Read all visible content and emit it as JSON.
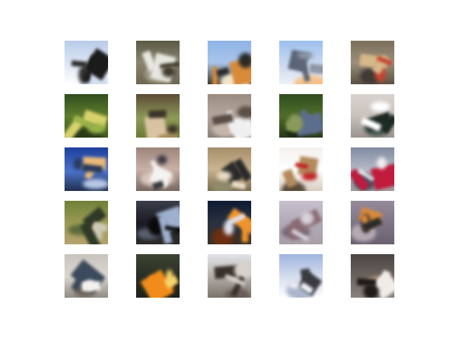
{
  "grid": {
    "rows": 5,
    "cols": 5
  },
  "tiles": [
    {
      "bg": "linear-gradient(180deg,#b9cbe9 0%,#dfe7f4 55%,#ffffff 100%)",
      "a": "#1b1b1b",
      "b": "#2d2d2d",
      "c": "#d4dff0"
    },
    {
      "bg": "linear-gradient(180deg,#5a5a44 0%,#8a8470 50%,#6c6650 100%)",
      "a": "#e8e6e0",
      "b": "#3d3a2c",
      "c": "#a39e8a"
    },
    {
      "bg": "linear-gradient(180deg,#8fb4e8 0%,#a9c4ea 50%,#3c3a30 100%)",
      "a": "#d98b3a",
      "b": "#2a2a28",
      "c": "#f2e6c8"
    },
    {
      "bg": "linear-gradient(180deg,#9cc0ee 0%,#cfdcef 60%,#eef2f7 100%)",
      "a": "#5c6577",
      "b": "#8d97a8",
      "c": "#f4c28a"
    },
    {
      "bg": "linear-gradient(180deg,#7b6f5d 0%,#9b8f7a 50%,#5a5144 100%)",
      "a": "#d6b88a",
      "b": "#c54632",
      "c": "#3e3a34"
    },
    {
      "bg": "linear-gradient(180deg,#2f4d1e 0%,#5f7d2a 50%,#3d5a1c 100%)",
      "a": "#d8d26c",
      "b": "#9bb34a",
      "c": "#2a3a18"
    },
    {
      "bg": "linear-gradient(180deg,#5a4a36 0%,#8f9a58 55%,#6a7a32 100%)",
      "a": "#d9c4a2",
      "b": "#3b3428",
      "c": "#a7905e"
    },
    {
      "bg": "linear-gradient(180deg,#9a8b80 0%,#b4a89e 50%,#8a7f78 100%)",
      "a": "#f0f0f0",
      "b": "#5b4e46",
      "c": "#c7b7aa"
    },
    {
      "bg": "linear-gradient(180deg,#2f4d1e 0%,#4e6e2a 50%,#2a3a1a 100%)",
      "a": "#5b6e8e",
      "b": "#8a9a5a",
      "c": "#1a2410"
    },
    {
      "bg": "linear-gradient(180deg,#d9d3cf 0%,#c9c1bb 50%,#9b948f 100%)",
      "a": "#1e2a24",
      "b": "#ffffff",
      "c": "#41554a"
    },
    {
      "bg": "linear-gradient(180deg,#1d3f9c 0%,#4b72c8 55%,#20304e 100%)",
      "a": "#e9b978",
      "b": "#2b3a5a",
      "c": "#b8c8e8"
    },
    {
      "bg": "linear-gradient(180deg,#9c8479 0%,#c8b0a8 50%,#77675f 100%)",
      "a": "#f4f2f0",
      "b": "#3b3a40",
      "c": "#d7c4bd"
    },
    {
      "bg": "linear-gradient(180deg,#a58f6a 0%,#c9b490 50%,#7a6b50 100%)",
      "a": "#2a2a2a",
      "b": "#e9dcc4",
      "c": "#8e8a6a"
    },
    {
      "bg": "linear-gradient(180deg,#f4f0ec 0%,#ffffff 50%,#d8cec2 100%)",
      "a": "#b48a5c",
      "b": "#c21f1f",
      "c": "#5a4a3a"
    },
    {
      "bg": "linear-gradient(180deg,#7f8aa0 0%,#b4b9c7 50%,#9f9a98 100%)",
      "a": "#c01a3c",
      "b": "#f0eef0",
      "c": "#4a4c60"
    },
    {
      "bg": "linear-gradient(180deg,#6f8038 0%,#9a9a52 50%,#b4a26e 100%)",
      "a": "#2f3a26",
      "b": "#cfc9b6",
      "c": "#5b6a3a"
    },
    {
      "bg": "linear-gradient(180deg,#3b3d4a 0%,#1b1c24 50%,#2e2a2a 100%)",
      "a": "#9db0ce",
      "b": "#0a0a0a",
      "c": "#5a6070"
    },
    {
      "bg": "linear-gradient(180deg,#0d1a33 0%,#2a3240 50%,#3a3024 100%)",
      "a": "#f0922a",
      "b": "#e0e0ee",
      "c": "#6b2f12"
    },
    {
      "bg": "linear-gradient(180deg,#c6c0cc 0%,#b3aab8 50%,#a79ea7 100%)",
      "a": "#8a6a72",
      "b": "#d8d2dc",
      "c": "#776874"
    },
    {
      "bg": "linear-gradient(180deg,#948b99 0%,#7f7587 50%,#6a616f 100%)",
      "a": "#d88a3a",
      "b": "#2a2a2a",
      "c": "#b7aab4"
    },
    {
      "bg": "linear-gradient(180deg,#c8c4bd 0%,#dcd7cf 50%,#8f8b83 100%)",
      "a": "#3b4a5c",
      "b": "#f4f2ee",
      "c": "#6a6258"
    },
    {
      "bg": "linear-gradient(180deg,#3c4532 0%,#2a2e24 50%,#1e221a 100%)",
      "a": "#f08c1a",
      "b": "#f7d36a",
      "c": "#c94a12"
    },
    {
      "bg": "linear-gradient(180deg,#e2e4ea 0%,#b6b0aa 50%,#7b726c 100%)",
      "a": "#3a302c",
      "b": "#d8d2cc",
      "c": "#6a5e58"
    },
    {
      "bg": "linear-gradient(180deg,#9fb4e0 0%,#d4dcee 50%,#ffffff 100%)",
      "a": "#3a3a40",
      "b": "#eef0f4",
      "c": "#aab4cc"
    },
    {
      "bg": "linear-gradient(180deg,#4a4442 0%,#6a625e 50%,#8a827c 100%)",
      "a": "#f0ece8",
      "b": "#1e1a18",
      "c": "#c7a88a"
    }
  ]
}
